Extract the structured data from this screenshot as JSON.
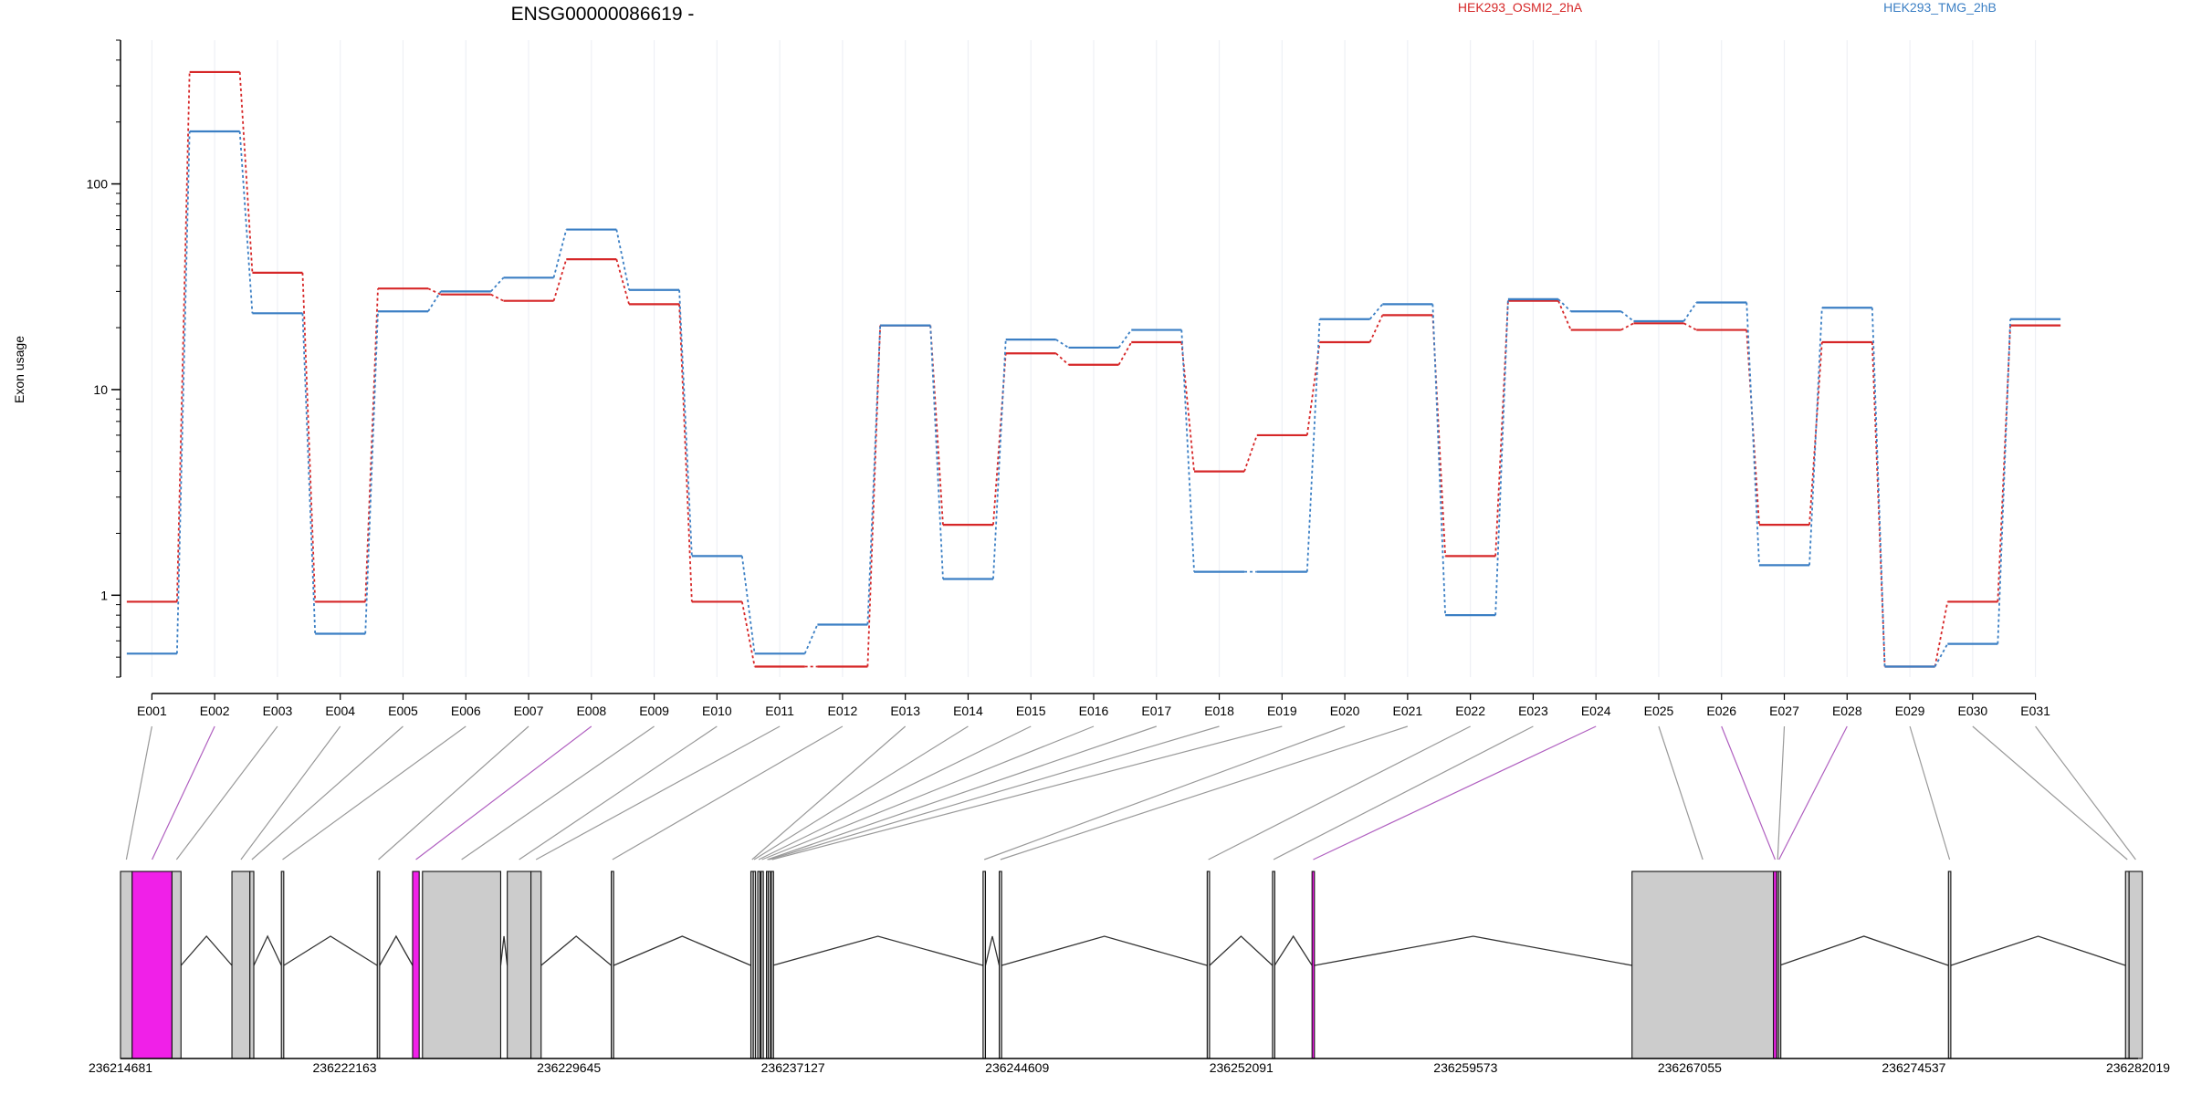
{
  "chart_data": {
    "type": "line",
    "title": "ENSG00000086619 -",
    "ylabel": "Exon usage",
    "y_scale": "log",
    "ylim": [
      0.4,
      500
    ],
    "y_ticks": [
      1,
      10,
      100
    ],
    "y_tick_labels": [
      "1",
      "10",
      "100"
    ],
    "grid": "vertical, light",
    "legend_placement": "top",
    "categories": [
      "E001",
      "E002",
      "E003",
      "E004",
      "E005",
      "E006",
      "E007",
      "E008",
      "E009",
      "E010",
      "E011",
      "E012",
      "E013",
      "E014",
      "E015",
      "E016",
      "E017",
      "E018",
      "E019",
      "E020",
      "E021",
      "E022",
      "E023",
      "E024",
      "E025",
      "E026",
      "E027",
      "E028",
      "E029",
      "E030",
      "E031"
    ],
    "series": [
      {
        "name": "HEK293_OSMI2_2hA",
        "color": "#d62728",
        "values": [
          0.93,
          350,
          37,
          0.93,
          31,
          29,
          27,
          43,
          26,
          0.93,
          0.45,
          0.45,
          20.5,
          2.2,
          15,
          13.2,
          17,
          4,
          6,
          17,
          23,
          1.55,
          27,
          19.5,
          21,
          19.5,
          2.2,
          17,
          0.45,
          0.93,
          20.5
        ]
      },
      {
        "name": "HEK293_TMG_2hB",
        "color": "#3b7fc4",
        "values": [
          0.52,
          180,
          23.5,
          0.65,
          24,
          30,
          35,
          60,
          30.5,
          1.55,
          0.52,
          0.72,
          20.5,
          1.2,
          17.5,
          16,
          19.5,
          1.3,
          1.3,
          22,
          26,
          0.8,
          27.5,
          24,
          21.5,
          26.5,
          1.4,
          25,
          0.45,
          0.58,
          22
        ]
      }
    ],
    "genomic_axis": {
      "tick_labels": [
        "236214681",
        "236222163",
        "236229645",
        "236237127",
        "236244609",
        "236252091",
        "236259573",
        "236267055",
        "236274537",
        "236282019"
      ],
      "tick_values": [
        236214681,
        236222163,
        236229645,
        236237127,
        236244609,
        236252091,
        236259573,
        236267055,
        236274537,
        236282019
      ],
      "exons": [
        {
          "id": "E001",
          "start": 236214681,
          "end": 236215070,
          "fill": "#cccccc",
          "connector": "#999999"
        },
        {
          "id": "E002",
          "start": 236215070,
          "end": 236216400,
          "fill": "#f020e8",
          "connector": "#b060c0"
        },
        {
          "id": "E003",
          "start": 236216400,
          "end": 236216700,
          "fill": "#cccccc",
          "connector": "#999999"
        },
        {
          "id": "E004",
          "start": 236218400,
          "end": 236219000,
          "fill": "#cccccc",
          "connector": "#999999"
        },
        {
          "id": "E005",
          "start": 236219000,
          "end": 236219130,
          "fill": "#cccccc",
          "connector": "#999999"
        },
        {
          "id": "E006",
          "start": 236220050,
          "end": 236220130,
          "fill": "#cccccc",
          "connector": "#999999"
        },
        {
          "id": "E007",
          "start": 236223250,
          "end": 236223330,
          "fill": "#cccccc",
          "connector": "#999999"
        },
        {
          "id": "E008",
          "start": 236224430,
          "end": 236224650,
          "fill": "#f020e8",
          "connector": "#b060c0"
        },
        {
          "id": "E009",
          "start": 236224760,
          "end": 236227370,
          "fill": "#cccccc",
          "connector": "#999999"
        },
        {
          "id": "E010",
          "start": 236227590,
          "end": 236228380,
          "fill": "#cccccc",
          "connector": "#999999"
        },
        {
          "id": "E011",
          "start": 236228380,
          "end": 236228720,
          "fill": "#cccccc",
          "connector": "#999999"
        },
        {
          "id": "E012",
          "start": 236231060,
          "end": 236231140,
          "fill": "#cccccc",
          "connector": "#999999"
        },
        {
          "id": "E013",
          "start": 236235720,
          "end": 236235800,
          "fill": "#cccccc",
          "connector": "#999999"
        },
        {
          "id": "E014",
          "start": 236235800,
          "end": 236235860,
          "fill": "#cccccc",
          "connector": "#999999"
        },
        {
          "id": "E015",
          "start": 236235950,
          "end": 236236010,
          "fill": "#cccccc",
          "connector": "#999999"
        },
        {
          "id": "E016",
          "start": 236236060,
          "end": 236236120,
          "fill": "#cccccc",
          "connector": "#999999"
        },
        {
          "id": "E017",
          "start": 236236240,
          "end": 236236300,
          "fill": "#cccccc",
          "connector": "#999999"
        },
        {
          "id": "E018",
          "start": 236236300,
          "end": 236236350,
          "fill": "#cccccc",
          "connector": "#999999"
        },
        {
          "id": "E019",
          "start": 236236400,
          "end": 236236450,
          "fill": "#cccccc",
          "connector": "#999999"
        },
        {
          "id": "E020",
          "start": 236243470,
          "end": 236243550,
          "fill": "#cccccc",
          "connector": "#999999"
        },
        {
          "id": "E021",
          "start": 236244010,
          "end": 236244090,
          "fill": "#cccccc",
          "connector": "#999999"
        },
        {
          "id": "E022",
          "start": 236250950,
          "end": 236251030,
          "fill": "#cccccc",
          "connector": "#999999"
        },
        {
          "id": "E023",
          "start": 236253130,
          "end": 236253200,
          "fill": "#cccccc",
          "connector": "#999999"
        },
        {
          "id": "E024",
          "start": 236254450,
          "end": 236254530,
          "fill": "#f020e8",
          "connector": "#b060c0"
        },
        {
          "id": "E025",
          "start": 236265130,
          "end": 236269850,
          "fill": "#cccccc",
          "connector": "#999999"
        },
        {
          "id": "E026",
          "start": 236269850,
          "end": 236269960,
          "fill": "#f020e8",
          "connector": "#b060c0"
        },
        {
          "id": "E027",
          "start": 236269960,
          "end": 236270020,
          "fill": "#cccccc",
          "connector": "#999999"
        },
        {
          "id": "E028",
          "start": 236270020,
          "end": 236270050,
          "fill": "#cccccc",
          "connector": "#b060c0"
        },
        {
          "id": "E029",
          "start": 236275690,
          "end": 236275770,
          "fill": "#cccccc",
          "connector": "#999999"
        },
        {
          "id": "E030",
          "start": 236281600,
          "end": 236281720,
          "fill": "#cccccc",
          "connector": "#999999"
        },
        {
          "id": "E031",
          "start": 236281720,
          "end": 236282160,
          "fill": "#cccccc",
          "connector": "#999999"
        }
      ]
    }
  }
}
